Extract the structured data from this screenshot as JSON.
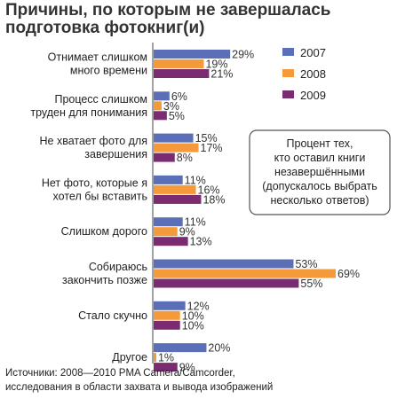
{
  "chart_data": {
    "type": "bar",
    "orientation": "horizontal",
    "title": "Причины, по которым не завершалась\nподготовка фотокниг(и)",
    "categories": [
      "Отнимает слишком\nмного времени",
      "Процесс слишком\nтруден для понимания",
      "Не хватает фото для\nзавершения",
      "Нет фото, которые я\nхотел бы вставить",
      "Слишком дорого",
      "Собираюсь\nзакончить позже",
      "Стало скучно",
      "Другое"
    ],
    "series": [
      {
        "name": "2007",
        "color": "#5b6fb8",
        "values": [
          29,
          6,
          15,
          11,
          11,
          53,
          12,
          20
        ]
      },
      {
        "name": "2008",
        "color": "#f59a3a",
        "values": [
          19,
          3,
          17,
          16,
          9,
          69,
          10,
          1
        ]
      },
      {
        "name": "2009",
        "color": "#7b2b72",
        "values": [
          21,
          5,
          8,
          18,
          13,
          55,
          10,
          9
        ]
      }
    ],
    "value_suffix": "%",
    "xlim": [
      0,
      69
    ],
    "legend_position": "top-right",
    "note": "Процент тех,\nкто оставил книги\nнезавершёнными\n(допускалось выбрать\nнесколько ответов)",
    "source": "Источники: 2008—2010 PMA Camera/Camcorder,\nисследования в области захвата и вывода изображений"
  }
}
